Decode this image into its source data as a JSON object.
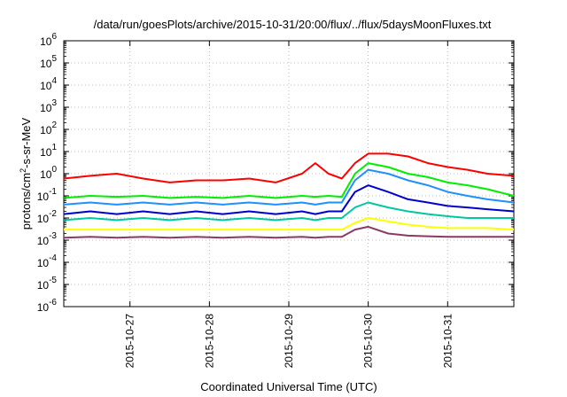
{
  "chart_data": {
    "type": "line",
    "title": "/data/run/goesPlots/archive/2015-10-31/20:00/flux/../flux/5daysMoonFluxes.txt",
    "xlabel": "Coordinated Universal Time (UTC)",
    "ylabel": "protons/cm²-s-sr-MeV",
    "ylabel_parts": {
      "prefix": "protons/cm",
      "sup": "2",
      "suffix": "-s-sr-MeV"
    },
    "yscale": "log",
    "ylim_exp": [
      -6,
      6
    ],
    "yticks": [
      {
        "base": "10",
        "exp": "6"
      },
      {
        "base": "10",
        "exp": "5"
      },
      {
        "base": "10",
        "exp": "4"
      },
      {
        "base": "10",
        "exp": "3"
      },
      {
        "base": "10",
        "exp": "2"
      },
      {
        "base": "10",
        "exp": "1"
      },
      {
        "base": "10",
        "exp": "0"
      },
      {
        "base": "10",
        "exp": "-1"
      },
      {
        "base": "10",
        "exp": "-2"
      },
      {
        "base": "10",
        "exp": "-3"
      },
      {
        "base": "10",
        "exp": "-4"
      },
      {
        "base": "10",
        "exp": "-5"
      },
      {
        "base": "10",
        "exp": "-6"
      }
    ],
    "xlim": [
      "2015-10-26T04:00",
      "2015-10-31T20:00"
    ],
    "xticks": [
      "2015-10-27",
      "2015-10-28",
      "2015-10-29",
      "2015-10-30",
      "2015-10-31"
    ],
    "grid": true,
    "legend": "none",
    "x": [
      "2015-10-26T04:00",
      "2015-10-26T12:00",
      "2015-10-26T20:00",
      "2015-10-27T04:00",
      "2015-10-27T12:00",
      "2015-10-27T20:00",
      "2015-10-28T04:00",
      "2015-10-28T12:00",
      "2015-10-28T20:00",
      "2015-10-29T04:00",
      "2015-10-29T08:00",
      "2015-10-29T12:00",
      "2015-10-29T16:00",
      "2015-10-29T20:00",
      "2015-10-30T00:00",
      "2015-10-30T06:00",
      "2015-10-30T12:00",
      "2015-10-30T18:00",
      "2015-10-31T00:00",
      "2015-10-31T06:00",
      "2015-10-31T12:00",
      "2015-10-31T20:00"
    ],
    "series": [
      {
        "color": "#ff0000",
        "values": [
          0.6,
          0.8,
          1.0,
          0.6,
          0.4,
          0.5,
          0.5,
          0.6,
          0.4,
          1.0,
          3.0,
          1.0,
          0.6,
          3.0,
          8.0,
          8.0,
          6.0,
          3.0,
          2.0,
          1.5,
          1.0,
          0.8
        ]
      },
      {
        "color": "#00ee00",
        "values": [
          0.08,
          0.1,
          0.09,
          0.1,
          0.08,
          0.09,
          0.08,
          0.1,
          0.08,
          0.1,
          0.09,
          0.1,
          0.09,
          1.0,
          3.0,
          2.0,
          1.0,
          0.7,
          0.4,
          0.3,
          0.2,
          0.1
        ]
      },
      {
        "color": "#1e90ff",
        "values": [
          0.04,
          0.05,
          0.04,
          0.05,
          0.04,
          0.05,
          0.04,
          0.05,
          0.04,
          0.05,
          0.04,
          0.05,
          0.05,
          0.5,
          1.5,
          1.0,
          0.5,
          0.3,
          0.15,
          0.1,
          0.07,
          0.05
        ]
      },
      {
        "color": "#0000cc",
        "values": [
          0.015,
          0.02,
          0.015,
          0.02,
          0.015,
          0.02,
          0.015,
          0.02,
          0.015,
          0.02,
          0.015,
          0.02,
          0.02,
          0.15,
          0.3,
          0.15,
          0.07,
          0.05,
          0.035,
          0.03,
          0.025,
          0.02
        ]
      },
      {
        "color": "#00c8a0",
        "values": [
          0.008,
          0.01,
          0.008,
          0.01,
          0.008,
          0.01,
          0.008,
          0.01,
          0.008,
          0.01,
          0.008,
          0.01,
          0.01,
          0.03,
          0.05,
          0.03,
          0.02,
          0.015,
          0.012,
          0.01,
          0.01,
          0.01
        ]
      },
      {
        "color": "#ffff00",
        "values": [
          0.003,
          0.003,
          0.003,
          0.003,
          0.003,
          0.003,
          0.003,
          0.003,
          0.003,
          0.003,
          0.003,
          0.003,
          0.003,
          0.006,
          0.01,
          0.007,
          0.005,
          0.004,
          0.0035,
          0.0035,
          0.0035,
          0.003
        ]
      },
      {
        "color": "#8b3a62",
        "values": [
          0.0013,
          0.0014,
          0.0013,
          0.0014,
          0.0013,
          0.0014,
          0.0013,
          0.0014,
          0.0013,
          0.0014,
          0.0013,
          0.0014,
          0.0014,
          0.003,
          0.004,
          0.002,
          0.0016,
          0.0015,
          0.0014,
          0.0014,
          0.0014,
          0.0014
        ]
      }
    ]
  }
}
